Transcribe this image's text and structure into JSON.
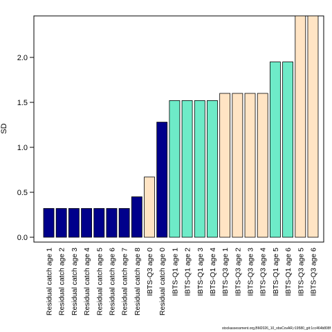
{
  "chart_data": {
    "type": "bar",
    "categories": [
      "Residual catch age 1",
      "Residual catch age 2",
      "Residual catch age 3",
      "Residual catch age 4",
      "Residual catch age 5",
      "Residual catch age 6",
      "Residual catch age 7",
      "Residual catch age 8",
      "IBTS-Q3 age 0",
      "Residual catch age 0",
      "IBTS-Q1 age 1",
      "IBTS-Q1 age 2",
      "IBTS-Q1 age 3",
      "IBTS-Q1 age 4",
      "IBTS-Q3 age 1",
      "IBTS-Q3 age 2",
      "IBTS-Q3 age 3",
      "IBTS-Q3 age 4",
      "IBTS-Q1 age 5",
      "IBTS-Q1 age 6",
      "IBTS-Q3 age 5",
      "IBTS-Q3 age 6"
    ],
    "values": [
      0.32,
      0.32,
      0.32,
      0.32,
      0.32,
      0.32,
      0.32,
      0.45,
      0.67,
      1.28,
      1.52,
      1.52,
      1.52,
      1.52,
      1.6,
      1.6,
      1.6,
      1.6,
      1.95,
      1.95,
      2.47,
      2.47
    ],
    "bar_colors": [
      "#00008B",
      "#00008B",
      "#00008B",
      "#00008B",
      "#00008B",
      "#00008B",
      "#00008B",
      "#00008B",
      "#FFE4C4",
      "#00008B",
      "#6EEBC8",
      "#6EEBC8",
      "#6EEBC8",
      "#6EEBC8",
      "#FFE4C4",
      "#FFE4C4",
      "#FFE4C4",
      "#FFE4C4",
      "#6EEBC8",
      "#6EEBC8",
      "#FFE4C4",
      "#FFE4C4"
    ],
    "ylabel": "SD",
    "xlabel": "",
    "title": "",
    "yticks": [
      "0.0",
      "0.5",
      "1.0",
      "1.5",
      "2.0"
    ],
    "ytick_values": [
      0,
      0.5,
      1.0,
      1.5,
      2.0
    ],
    "ylim": [
      -0.02,
      2.47
    ],
    "grid": false,
    "legend": "none"
  },
  "footer": "stockassessment.org,BM2026_10_obsCovAR,r19580_git:1cc464b808f"
}
